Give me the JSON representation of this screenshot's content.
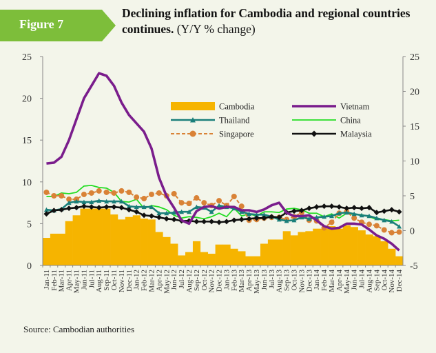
{
  "header": {
    "figure_label": "Figure 7",
    "title_bold": "Declining inflation for Cambodia and regional countries continues.",
    "title_suffix": " (Y/Y % change)"
  },
  "source": "Source: Cambodian authorities",
  "colors": {
    "badge": "#7dbe3a",
    "cambodia": "#f6b400",
    "vietnam": "#7a1d8c",
    "thailand": "#1a7f7a",
    "china": "#22dd22",
    "singapore": "#d98236",
    "malaysia": "#111111"
  },
  "chart_data": {
    "type": "bar",
    "x": [
      "Jan-11",
      "Feb-11",
      "Mar-11",
      "Apr-11",
      "May-11",
      "Jun-11",
      "Jul-11",
      "Aug-11",
      "Sep-11",
      "Oct-11",
      "Nov-11",
      "Dec-11",
      "Jan-12",
      "Feb-12",
      "Mar-12",
      "Apr-12",
      "May-12",
      "Jun-12",
      "Jul-12",
      "Aug-12",
      "Sep-12",
      "Oct-12",
      "Nov-12",
      "Dec-12",
      "Jan-13",
      "Feb-13",
      "Mar-13",
      "Apr-13",
      "May-13",
      "Jun-13",
      "Jul-13",
      "Aug-13",
      "Sep-13",
      "Oct-13",
      "Nov-13",
      "Dec-13",
      "Jan-14",
      "Feb-14",
      "Mar-14",
      "Apr-14",
      "May-14",
      "Jun-14",
      "Jul-14",
      "Aug-14",
      "Sep-14",
      "Oct-14",
      "Nov-14",
      "Dec-14"
    ],
    "y_left": {
      "ylim": [
        0,
        25
      ],
      "ticks": [
        0,
        5,
        10,
        15,
        20,
        25
      ],
      "series": [
        "Cambodia",
        "Vietnam"
      ]
    },
    "y_right": {
      "ylim": [
        -5,
        25
      ],
      "ticks": [
        -5,
        0,
        5,
        10,
        15,
        20,
        25
      ],
      "series": [
        "Thailand",
        "China",
        "Singapore",
        "Malaysia"
      ]
    },
    "grid": false,
    "legend": "inside, top-center",
    "series": [
      {
        "name": "Cambodia",
        "type": "bar",
        "axis": "left",
        "values": [
          3.3,
          3.8,
          3.8,
          5.3,
          6.0,
          6.8,
          6.8,
          6.8,
          6.8,
          6.1,
          5.5,
          5.8,
          6.0,
          5.6,
          5.5,
          4.0,
          3.4,
          2.6,
          1.2,
          1.6,
          2.9,
          1.6,
          1.4,
          2.5,
          2.5,
          2.0,
          1.7,
          1.1,
          1.1,
          2.6,
          3.1,
          3.1,
          4.1,
          3.6,
          4.0,
          4.1,
          4.4,
          4.4,
          4.7,
          4.4,
          4.8,
          4.6,
          4.2,
          3.7,
          3.5,
          2.9,
          2.0,
          1.1
        ]
      },
      {
        "name": "Vietnam",
        "type": "line",
        "axis": "left",
        "values": [
          12.2,
          12.3,
          13.0,
          15.0,
          17.5,
          20.0,
          21.5,
          23.0,
          22.7,
          21.5,
          19.5,
          18.0,
          17.0,
          16.0,
          14.0,
          10.5,
          8.3,
          6.9,
          5.4,
          5.0,
          6.5,
          7.0,
          7.1,
          6.8,
          7.0,
          7.0,
          6.6,
          6.6,
          6.4,
          6.7,
          7.2,
          7.5,
          6.3,
          5.9,
          5.9,
          6.0,
          5.4,
          4.7,
          4.4,
          4.5,
          5.0,
          5.0,
          4.9,
          4.3,
          3.6,
          3.2,
          2.6,
          1.8
        ]
      },
      {
        "name": "Thailand",
        "type": "line-marker",
        "axis": "right",
        "values": [
          3.0,
          2.9,
          3.1,
          4.0,
          4.2,
          4.1,
          4.1,
          4.3,
          4.2,
          4.2,
          4.2,
          3.5,
          3.4,
          3.4,
          3.4,
          2.5,
          2.5,
          2.6,
          2.7,
          2.7,
          3.4,
          3.3,
          2.7,
          3.6,
          3.4,
          3.2,
          2.7,
          2.4,
          2.3,
          2.3,
          2.0,
          1.6,
          1.4,
          1.5,
          1.9,
          1.7,
          1.9,
          2.0,
          2.1,
          2.5,
          2.6,
          2.4,
          2.2,
          2.1,
          1.8,
          1.5,
          1.3,
          0.6
        ]
      },
      {
        "name": "China",
        "type": "line",
        "axis": "right",
        "values": [
          4.9,
          4.9,
          5.4,
          5.3,
          5.5,
          6.4,
          6.5,
          6.2,
          6.1,
          5.5,
          4.2,
          4.1,
          4.5,
          3.2,
          3.6,
          3.4,
          3.0,
          2.2,
          1.8,
          2.0,
          1.9,
          1.7,
          2.0,
          2.5,
          2.0,
          3.2,
          2.1,
          2.4,
          2.1,
          2.7,
          2.7,
          2.6,
          3.1,
          3.2,
          3.0,
          2.5,
          2.5,
          2.0,
          2.4,
          1.8,
          2.5,
          2.3,
          2.3,
          2.0,
          1.6,
          1.6,
          1.4,
          1.5
        ]
      },
      {
        "name": "Singapore",
        "type": "line-marker-dashed",
        "axis": "right",
        "values": [
          5.5,
          5.0,
          5.0,
          4.5,
          4.5,
          5.2,
          5.4,
          5.7,
          5.5,
          5.4,
          5.7,
          5.5,
          4.8,
          4.6,
          5.2,
          5.4,
          5.0,
          5.3,
          4.0,
          3.9,
          4.7,
          4.0,
          3.6,
          4.3,
          3.6,
          4.9,
          3.5,
          1.5,
          1.6,
          1.8,
          1.9,
          1.9,
          1.6,
          2.0,
          2.6,
          1.5,
          1.4,
          0.4,
          1.2,
          2.5,
          2.7,
          1.8,
          1.2,
          0.9,
          0.7,
          0.1,
          -0.3,
          -0.2
        ]
      },
      {
        "name": "Malaysia",
        "type": "line-marker",
        "axis": "right",
        "values": [
          2.4,
          2.9,
          3.0,
          3.2,
          3.3,
          3.5,
          3.4,
          3.3,
          3.4,
          3.4,
          3.3,
          3.0,
          2.7,
          2.2,
          2.1,
          1.9,
          1.7,
          1.6,
          1.4,
          1.4,
          1.3,
          1.3,
          1.3,
          1.2,
          1.3,
          1.5,
          1.6,
          1.7,
          1.8,
          1.8,
          2.0,
          1.9,
          2.6,
          2.8,
          2.9,
          3.2,
          3.4,
          3.5,
          3.5,
          3.4,
          3.2,
          3.3,
          3.2,
          3.3,
          2.6,
          2.8,
          3.0,
          2.7
        ]
      }
    ]
  }
}
